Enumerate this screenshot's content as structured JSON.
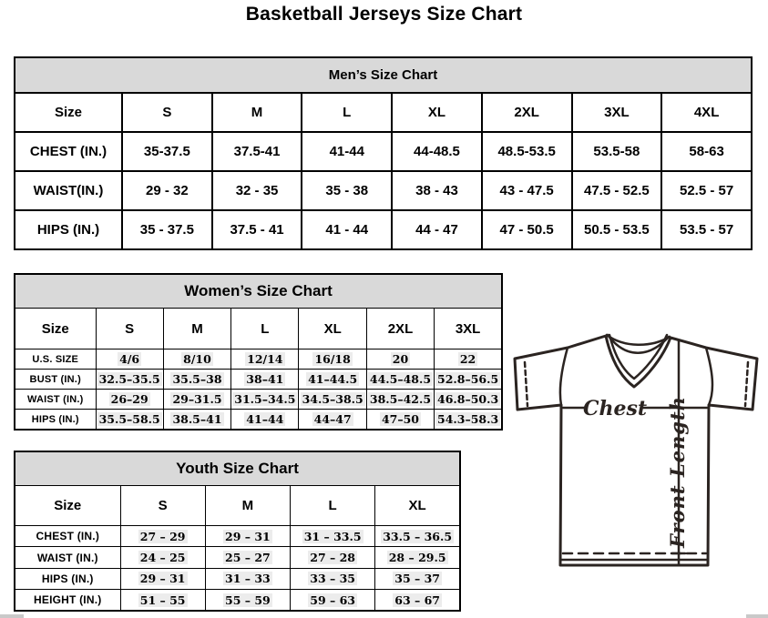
{
  "page": {
    "title": "Basketball Jerseys Size Chart"
  },
  "colors": {
    "table_header_bg": "#d9d9d9",
    "table_border": "#000000",
    "jersey_stroke": "#2b2421",
    "highlight": "#ececec"
  },
  "tables": [
    {
      "id": "mens",
      "title": "Men’s Size Chart",
      "columns": [
        "Size",
        "S",
        "M",
        "L",
        "XL",
        "2XL",
        "3XL",
        "4XL"
      ],
      "rows": [
        {
          "label": "CHEST (IN.)",
          "values": [
            "35-37.5",
            "37.5-41",
            "41-44",
            "44-48.5",
            "48.5-53.5",
            "53.5-58",
            "58-63"
          ]
        },
        {
          "label": "WAIST(IN.)",
          "values": [
            "29 - 32",
            "32 - 35",
            "35 - 38",
            "38 - 43",
            "43 - 47.5",
            "47.5 - 52.5",
            "52.5 - 57"
          ]
        },
        {
          "label": "HIPS (IN.)",
          "values": [
            "35 - 37.5",
            "37.5 - 41",
            "41 - 44",
            "44 - 47",
            "47 - 50.5",
            "50.5 - 53.5",
            "53.5 - 57"
          ]
        }
      ]
    },
    {
      "id": "womens",
      "title": "Women’s Size Chart",
      "columns": [
        "Size",
        "S",
        "M",
        "L",
        "XL",
        "2XL",
        "3XL"
      ],
      "rows": [
        {
          "label": "U.S. SIZE",
          "values": [
            "4/6",
            "8/10",
            "12/14",
            "16/18",
            "20",
            "22"
          ]
        },
        {
          "label": "BUST (IN.)",
          "values": [
            "32.5–35.5",
            "35.5–38",
            "38–41",
            "41–44.5",
            "44.5–48.5",
            "52.8–56.5"
          ]
        },
        {
          "label": "WAIST (IN.)",
          "values": [
            "26–29",
            "29–31.5",
            "31.5–34.5",
            "34.5–38.5",
            "38.5–42.5",
            "46.8–50.3"
          ]
        },
        {
          "label": "HIPS (IN.)",
          "values": [
            "35.5–58.5",
            "38.5–41",
            "41–44",
            "44–47",
            "47–50",
            "54.3–58.3"
          ]
        }
      ]
    },
    {
      "id": "youth",
      "title": "Youth Size Chart",
      "columns": [
        "Size",
        "S",
        "M",
        "L",
        "XL"
      ],
      "rows": [
        {
          "label": "CHEST (IN.)",
          "values": [
            "27 – 29",
            "29 – 31",
            "31 – 33.5",
            "33.5 – 36.5"
          ]
        },
        {
          "label": "WAIST (IN.)",
          "values": [
            "24 – 25",
            "25 – 27",
            "27 – 28",
            "28 – 29.5"
          ]
        },
        {
          "label": "HIPS (IN.)",
          "values": [
            "29 – 31",
            "31 – 33",
            "33 – 35",
            "35 – 37"
          ]
        },
        {
          "label": "HEIGHT (IN.)",
          "values": [
            "51 – 55",
            "55 – 59",
            "59 – 63",
            "63 – 67"
          ]
        }
      ]
    }
  ],
  "diagram": {
    "chest_label": "Chest",
    "front_length_label": "Front Length"
  }
}
